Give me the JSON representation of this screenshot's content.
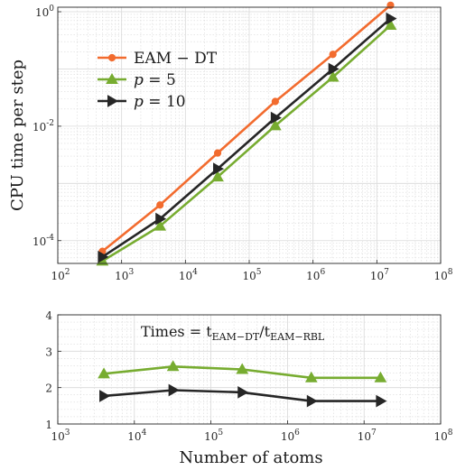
{
  "colors": {
    "eam_dt": "#f26b2e",
    "p5": "#77ac30",
    "p10": "#262626",
    "grid": "#d9d9d9",
    "axis": "#262626"
  },
  "chart_data": [
    {
      "type": "line",
      "ylabel": "CPU time per step",
      "xlabel": "",
      "xscale": "log",
      "yscale": "log",
      "xlim": [
        100,
        100000000
      ],
      "ylim": [
        4e-05,
        1.2
      ],
      "grid": true,
      "legend_position": "top-left",
      "x_ticks": [
        100,
        1000,
        10000,
        100000,
        1000000,
        10000000,
        100000000
      ],
      "x_tick_labels": [
        [
          "10",
          "2"
        ],
        [
          "10",
          "3"
        ],
        [
          "10",
          "4"
        ],
        [
          "10",
          "5"
        ],
        [
          "10",
          "6"
        ],
        [
          "10",
          "7"
        ],
        [
          "10",
          "8"
        ]
      ],
      "y_ticks": [
        0.0001,
        0.01,
        1
      ],
      "y_tick_labels": [
        [
          "10",
          "-4"
        ],
        [
          "10",
          "-2"
        ],
        [
          "10",
          "0"
        ]
      ],
      "series": [
        {
          "name": "EAM − DT",
          "color": "#f26b2e",
          "marker": "circle",
          "x": [
            500,
            4000,
            32000,
            256000,
            2048000,
            16384000
          ],
          "y": [
            6.5e-05,
            0.00042,
            0.0034,
            0.027,
            0.18,
            1.3
          ]
        },
        {
          "name": "p = 5",
          "color": "#77ac30",
          "marker": "triangle-up",
          "x": [
            500,
            4000,
            32000,
            256000,
            2048000,
            16384000
          ],
          "y": [
            4.4e-05,
            0.00018,
            0.0013,
            0.0102,
            0.072,
            0.58
          ]
        },
        {
          "name": "p = 10",
          "color": "#262626",
          "marker": "triangle-right",
          "x": [
            500,
            4000,
            32000,
            256000,
            2048000,
            16384000
          ],
          "y": [
            5.2e-05,
            0.00024,
            0.0018,
            0.014,
            0.1,
            0.76
          ]
        }
      ]
    },
    {
      "type": "line",
      "xlabel": "Number of atoms",
      "ylabel": "",
      "xscale": "log",
      "yscale": "linear",
      "xlim": [
        1000,
        100000000
      ],
      "ylim": [
        1,
        4
      ],
      "grid": true,
      "annotation": {
        "prefix": "Times = t",
        "num_sub": "EAM−DT",
        "slash": "/t",
        "den_sub": "EAM−RBL"
      },
      "x_ticks": [
        1000,
        10000,
        100000,
        1000000,
        10000000,
        100000000
      ],
      "x_tick_labels": [
        [
          "10",
          "3"
        ],
        [
          "10",
          "4"
        ],
        [
          "10",
          "5"
        ],
        [
          "10",
          "6"
        ],
        [
          "10",
          "7"
        ],
        [
          "10",
          "8"
        ]
      ],
      "y_ticks": [
        1,
        2,
        3,
        4
      ],
      "y_tick_labels": [
        "1",
        "2",
        "3",
        "4"
      ],
      "series": [
        {
          "color": "#77ac30",
          "marker": "triangle-up",
          "x": [
            4000,
            32000,
            256000,
            2048000,
            16384000
          ],
          "y": [
            2.38,
            2.58,
            2.5,
            2.27,
            2.27
          ]
        },
        {
          "color": "#262626",
          "marker": "triangle-right",
          "x": [
            4000,
            32000,
            256000,
            2048000,
            16384000
          ],
          "y": [
            1.77,
            1.93,
            1.87,
            1.63,
            1.63
          ]
        }
      ]
    }
  ]
}
